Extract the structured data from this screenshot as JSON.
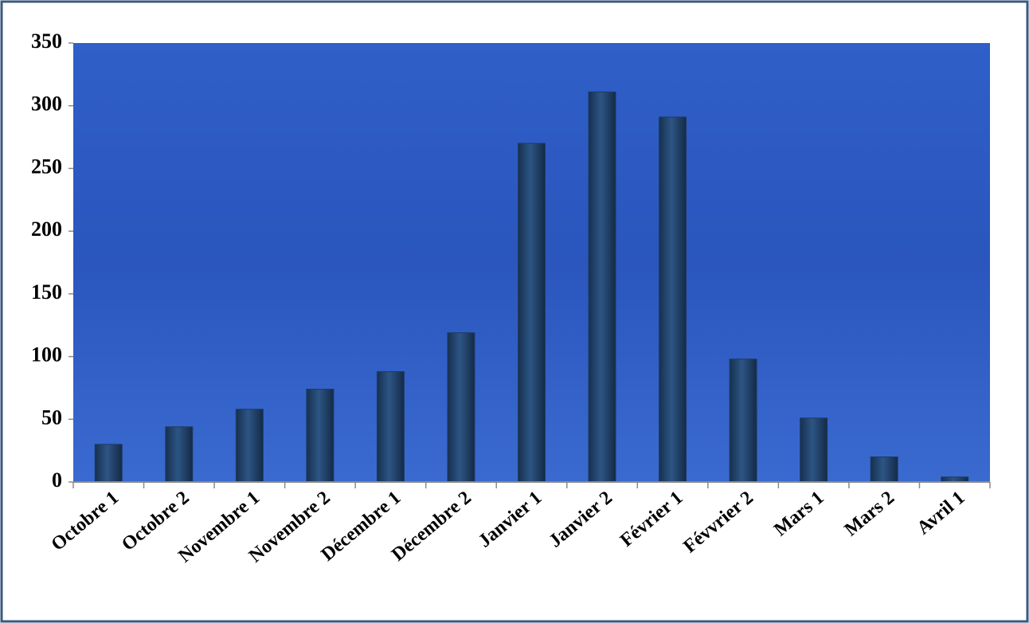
{
  "chart_data": {
    "type": "bar",
    "categories": [
      "Octobre 1",
      "Octobre 2",
      "Novembre 1",
      "Novembre 2",
      "Décembre 1",
      "Décembre 2",
      "Janvier 1",
      "Janvier 2",
      "Février 1",
      "Févvrier 2",
      "Mars 1",
      "Mars 2",
      "Avril 1"
    ],
    "values": [
      30,
      44,
      58,
      74,
      88,
      119,
      270,
      311,
      291,
      98,
      51,
      20,
      4
    ],
    "color": "#1f3b63",
    "ylim": [
      0,
      350
    ],
    "yticks": [
      0,
      50,
      100,
      150,
      200,
      250,
      300,
      350
    ]
  }
}
